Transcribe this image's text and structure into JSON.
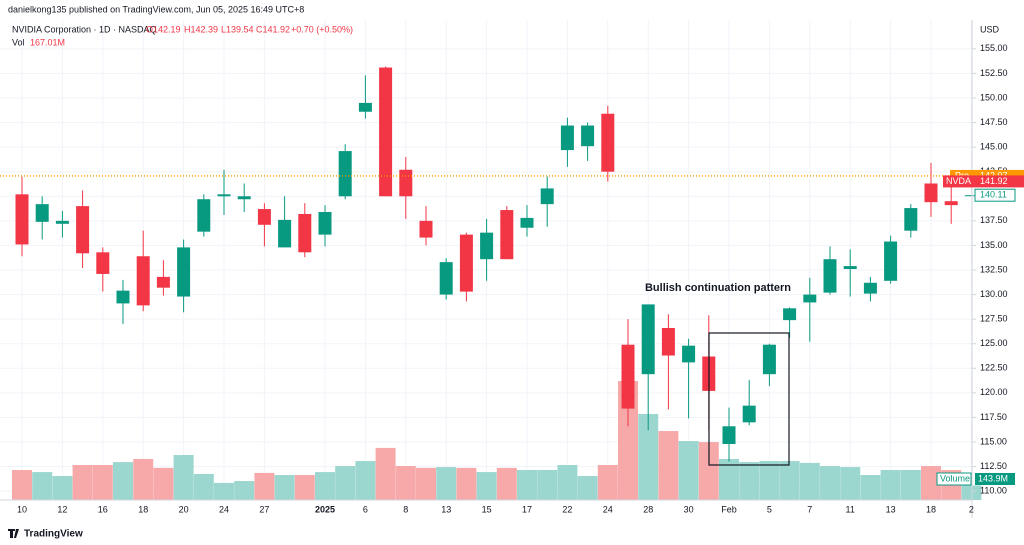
{
  "chart_data": {
    "type": "candlestick",
    "publisher": "danielkong135 published on TradingView.com, Jun 05, 2025 16:49 UTC+8",
    "symbol": "NVIDIA Corporation · 1D · NASDAQ",
    "header_stats": [
      "O142.19",
      "H142.39",
      "L139.54",
      "C141.92",
      "+0.70 (+0.50%)"
    ],
    "volume_header": {
      "label": "Vol",
      "value": "167.01M"
    },
    "currency": "USD",
    "annotation": "Bullish continuation pattern",
    "pre_market": {
      "label": "Pre",
      "value": 142.07,
      "color": "#ff9800"
    },
    "last_price": {
      "label": "NVDA",
      "value": 141.92,
      "color": "#f23645"
    },
    "next_price": 140.11,
    "volume_tag": {
      "label": "Volume",
      "value": "143.9M"
    },
    "logo": "TradingView",
    "categories": [
      "10",
      null,
      "12",
      null,
      "16",
      null,
      "18",
      null,
      "20",
      null,
      "24",
      null,
      "27",
      null,
      null,
      "2025",
      null,
      "6",
      null,
      "8",
      null,
      "13",
      null,
      "15",
      null,
      "17",
      null,
      "22",
      null,
      "24",
      null,
      "28",
      null,
      "30",
      null,
      "Feb",
      null,
      "5",
      null,
      "7",
      null,
      "11",
      null,
      "13",
      null,
      "18",
      null,
      "2"
    ],
    "open": [
      140.2,
      137.4,
      137.2,
      139.0,
      134.3,
      129.1,
      133.9,
      131.8,
      129.8,
      136.4,
      140.0,
      139.7,
      138.7,
      134.8,
      138.2,
      136.1,
      140.0,
      148.6,
      153.1,
      142.7,
      137.5,
      130.0,
      136.1,
      133.6,
      138.6,
      136.8,
      139.2,
      144.7,
      145.1,
      148.4,
      124.9,
      121.9,
      126.6,
      123.1,
      123.7,
      114.8,
      117.0,
      121.9,
      127.4,
      129.2,
      130.2,
      132.6,
      130.1,
      131.4,
      136.5,
      141.3,
      139.5,
      140.11
    ],
    "high": [
      142.0,
      140.0,
      138.5,
      140.6,
      134.8,
      131.5,
      136.5,
      133.5,
      135.6,
      140.2,
      142.7,
      141.3,
      139.3,
      140.0,
      139.3,
      139.1,
      145.3,
      152.3,
      153.2,
      144.0,
      139.0,
      133.7,
      136.3,
      137.7,
      139.0,
      139.1,
      142.0,
      148.0,
      147.5,
      149.2,
      127.5,
      129.0,
      128.0,
      125.5,
      127.9,
      118.5,
      121.3,
      125.0,
      128.7,
      131.7,
      134.9,
      134.6,
      131.8,
      136.0,
      139.2,
      143.4,
      142.5,
      140.11
    ],
    "low": [
      133.9,
      135.6,
      135.8,
      132.7,
      130.3,
      127.0,
      128.3,
      129.9,
      128.2,
      135.9,
      138.1,
      138.4,
      134.9,
      134.8,
      133.8,
      134.9,
      139.7,
      147.9,
      140.0,
      137.7,
      135.0,
      129.5,
      129.3,
      131.4,
      133.6,
      135.9,
      136.9,
      143.0,
      143.6,
      141.5,
      116.6,
      116.2,
      118.3,
      117.4,
      116.2,
      113.0,
      116.7,
      120.7,
      125.6,
      125.2,
      130.0,
      129.8,
      129.3,
      131.1,
      135.8,
      137.9,
      137.2,
      140.11
    ],
    "close": [
      135.1,
      139.2,
      137.5,
      134.2,
      132.1,
      130.4,
      128.9,
      130.7,
      134.8,
      139.7,
      140.2,
      140.0,
      137.1,
      137.6,
      134.3,
      138.4,
      144.6,
      149.5,
      140.0,
      140.0,
      135.8,
      133.3,
      130.3,
      136.3,
      133.6,
      137.8,
      140.8,
      147.2,
      147.2,
      142.5,
      118.4,
      129.0,
      123.8,
      124.8,
      120.2,
      116.6,
      118.7,
      124.9,
      128.6,
      130.0,
      133.6,
      132.9,
      131.2,
      135.4,
      138.8,
      139.4,
      139.1,
      140.11
    ],
    "volume": [
      144,
      134,
      115,
      168,
      168,
      182,
      197,
      154,
      216,
      125,
      82,
      91,
      130,
      120,
      120,
      134,
      163,
      187,
      250,
      163,
      154,
      158,
      154,
      134,
      154,
      144,
      144,
      168,
      115,
      168,
      571,
      413,
      331,
      283,
      278,
      197,
      182,
      187,
      187,
      178,
      163,
      158,
      120,
      144,
      144,
      163,
      143.9,
      70
    ],
    "up_color": "#089981",
    "down_color": "#f23645",
    "volume_up_color": "#9bd6cf",
    "volume_down_color": "#f7a9a9",
    "ylim": [
      109.1,
      155.9
    ],
    "yticks": [
      {
        "value": 110,
        "label": "110.00"
      },
      {
        "value": 112.5,
        "label": "112.50"
      },
      {
        "value": 115,
        "label": "115.00"
      },
      {
        "value": 117.5,
        "label": "117.50"
      },
      {
        "value": 120,
        "label": "120.00"
      },
      {
        "value": 122.5,
        "label": "122.50"
      },
      {
        "value": 125,
        "label": "125.00"
      },
      {
        "value": 127.5,
        "label": "127.50"
      },
      {
        "value": 130,
        "label": "130.00"
      },
      {
        "value": 132.5,
        "label": "132.50"
      },
      {
        "value": 135,
        "label": "135.00"
      },
      {
        "value": 137.5,
        "label": "137.50"
      },
      {
        "value": 140,
        "label": "140.00"
      },
      {
        "value": 142.5,
        "label": "142.50"
      },
      {
        "value": 145,
        "label": "145.00"
      },
      {
        "value": 147.5,
        "label": "147.50"
      },
      {
        "value": 150,
        "label": "150.00"
      },
      {
        "value": 152.5,
        "label": "152.50"
      },
      {
        "value": 155,
        "label": "155.00"
      }
    ],
    "volume_ylim": [
      0,
      600
    ],
    "grid": true
  }
}
